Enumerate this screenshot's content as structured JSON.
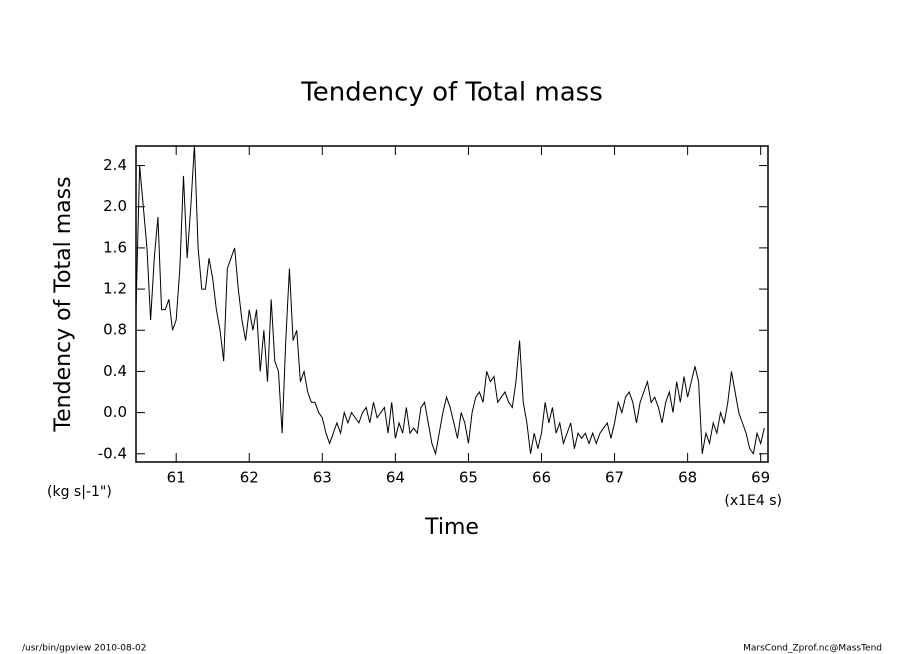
{
  "chart_data": {
    "type": "line",
    "title": "Tendency of Total mass",
    "y_label": "Tendency of Total mass",
    "y_units": "(kg s|-1\")",
    "x_label": "Time",
    "x_units": "(x1E4 s)",
    "footer_left": "/usr/bin/gpview  2010-08-02",
    "footer_right": "MarsCond_Zprof.nc@MassTend",
    "color": "#000000",
    "x": [
      60.45,
      60.5,
      60.55,
      60.6,
      60.65,
      60.7,
      60.75,
      60.8,
      60.85,
      60.9,
      60.95,
      61,
      61.05,
      61.1,
      61.15,
      61.2,
      61.25,
      61.3,
      61.35,
      61.4,
      61.45,
      61.5,
      61.55,
      61.6,
      61.65,
      61.7,
      61.75,
      61.8,
      61.85,
      61.9,
      61.95,
      62,
      62.05,
      62.1,
      62.15,
      62.2,
      62.25,
      62.3,
      62.35,
      62.4,
      62.45,
      62.5,
      62.55,
      62.6,
      62.65,
      62.7,
      62.75,
      62.8,
      62.85,
      62.9,
      62.95,
      63,
      63.05,
      63.1,
      63.15,
      63.2,
      63.25,
      63.3,
      63.35,
      63.4,
      63.45,
      63.5,
      63.55,
      63.6,
      63.65,
      63.7,
      63.75,
      63.8,
      63.85,
      63.9,
      63.95,
      64,
      64.05,
      64.1,
      64.15,
      64.2,
      64.25,
      64.3,
      64.35,
      64.4,
      64.45,
      64.5,
      64.55,
      64.6,
      64.65,
      64.7,
      64.75,
      64.8,
      64.85,
      64.9,
      64.95,
      65,
      65.05,
      65.1,
      65.15,
      65.2,
      65.25,
      65.3,
      65.35,
      65.4,
      65.45,
      65.5,
      65.55,
      65.6,
      65.65,
      65.7,
      65.75,
      65.8,
      65.85,
      65.9,
      65.95,
      66,
      66.05,
      66.1,
      66.15,
      66.2,
      66.25,
      66.3,
      66.35,
      66.4,
      66.45,
      66.5,
      66.55,
      66.6,
      66.65,
      66.7,
      66.75,
      66.8,
      66.85,
      66.9,
      66.95,
      67,
      67.05,
      67.1,
      67.15,
      67.2,
      67.25,
      67.3,
      67.35,
      67.4,
      67.45,
      67.5,
      67.55,
      67.6,
      67.65,
      67.7,
      67.75,
      67.8,
      67.85,
      67.9,
      67.95,
      68,
      68.05,
      68.1,
      68.15,
      68.2,
      68.25,
      68.3,
      68.35,
      68.4,
      68.45,
      68.5,
      68.55,
      68.6,
      68.65,
      68.7,
      68.75,
      68.8,
      68.85,
      68.9,
      68.95,
      69,
      69.05
    ],
    "values": [
      1.0,
      2.4,
      2.0,
      1.6,
      0.9,
      1.5,
      1.9,
      1.0,
      1.0,
      1.1,
      0.8,
      0.9,
      1.4,
      2.3,
      1.5,
      2.0,
      2.6,
      1.6,
      1.2,
      1.2,
      1.5,
      1.3,
      1.0,
      0.8,
      0.5,
      1.4,
      1.5,
      1.6,
      1.2,
      0.9,
      0.7,
      1.0,
      0.8,
      1.0,
      0.4,
      0.8,
      0.3,
      1.1,
      0.5,
      0.4,
      -0.2,
      0.7,
      1.4,
      0.7,
      0.8,
      0.3,
      0.4,
      0.2,
      0.1,
      0.1,
      0.0,
      -0.05,
      -0.2,
      -0.3,
      -0.2,
      -0.1,
      -0.2,
      0.0,
      -0.1,
      0.0,
      -0.05,
      -0.1,
      0.0,
      0.05,
      -0.1,
      0.1,
      -0.05,
      0.0,
      0.05,
      -0.2,
      0.1,
      -0.25,
      -0.1,
      -0.2,
      0.05,
      -0.2,
      -0.15,
      -0.2,
      0.05,
      0.1,
      -0.1,
      -0.3,
      -0.4,
      -0.2,
      0.0,
      0.15,
      0.05,
      -0.1,
      -0.25,
      0.0,
      -0.1,
      -0.3,
      0.0,
      0.15,
      0.2,
      0.1,
      0.4,
      0.3,
      0.35,
      0.1,
      0.15,
      0.2,
      0.1,
      0.05,
      0.3,
      0.7,
      0.1,
      -0.1,
      -0.4,
      -0.2,
      -0.35,
      -0.2,
      0.1,
      -0.1,
      0.05,
      -0.2,
      -0.1,
      -0.3,
      -0.2,
      -0.1,
      -0.35,
      -0.2,
      -0.25,
      -0.2,
      -0.3,
      -0.2,
      -0.3,
      -0.2,
      -0.15,
      -0.1,
      -0.25,
      -0.1,
      0.1,
      0.0,
      0.15,
      0.2,
      0.1,
      -0.1,
      0.1,
      0.2,
      0.3,
      0.1,
      0.15,
      0.05,
      -0.1,
      0.1,
      0.2,
      0.0,
      0.3,
      0.1,
      0.35,
      0.15,
      0.3,
      0.45,
      0.3,
      -0.4,
      -0.2,
      -0.3,
      -0.1,
      -0.2,
      0.0,
      -0.1,
      0.1,
      0.4,
      0.2,
      0.0,
      -0.1,
      -0.2,
      -0.35,
      -0.4,
      -0.2,
      -0.3,
      -0.15
    ],
    "xlim": [
      60.45,
      69.1
    ],
    "ylim": [
      -0.48,
      2.59
    ],
    "xticks": [
      61,
      62,
      63,
      64,
      65,
      66,
      67,
      68,
      69
    ],
    "yticks": [
      -0.4,
      {
        "value": 0,
        "label": "0.0"
      },
      0.4,
      0.8,
      1.2,
      1.6,
      {
        "value": 2,
        "label": "2.0"
      },
      2.4
    ]
  }
}
